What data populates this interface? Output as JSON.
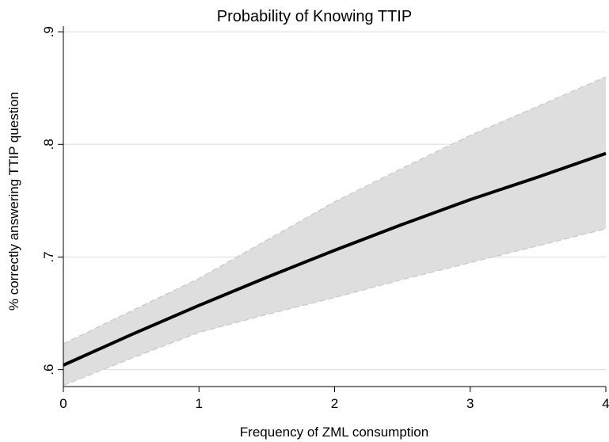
{
  "chart_data": {
    "type": "line",
    "title": "Probability of Knowing TTIP",
    "xlabel": "Frequency of ZML consumption",
    "ylabel": "% correctly answering TTIP question",
    "xlim": [
      0,
      4
    ],
    "ylim": [
      0.585,
      0.905
    ],
    "x_ticks": [
      0,
      1,
      2,
      3,
      4
    ],
    "x_tick_labels": [
      "0",
      "1",
      "2",
      "3",
      "4"
    ],
    "y_ticks": [
      0.6,
      0.7,
      0.8,
      0.9
    ],
    "y_tick_labels": [
      ".6",
      ".7",
      ".8",
      ".9"
    ],
    "grid": "horizontal",
    "x": [
      0,
      0.5,
      1,
      1.5,
      2,
      2.5,
      3,
      3.5,
      4
    ],
    "series": [
      {
        "values": [
          0.604,
          0.631,
          0.657,
          0.682,
          0.706,
          0.729,
          0.751,
          0.771,
          0.792
        ],
        "lower": [
          0.586,
          0.61,
          0.633,
          0.649,
          0.664,
          0.68,
          0.695,
          0.71,
          0.725
        ],
        "upper": [
          0.623,
          0.652,
          0.681,
          0.715,
          0.749,
          0.779,
          0.808,
          0.834,
          0.86
        ]
      }
    ],
    "colors": {
      "line": "#000000",
      "band": "#dedede",
      "band_edge": "#c8c8c8",
      "grid": "#dcdcdc"
    }
  }
}
